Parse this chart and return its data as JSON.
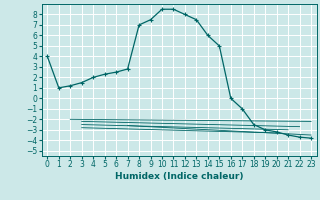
{
  "bg_color": "#cce8e8",
  "grid_color": "#ffffff",
  "line_color": "#006666",
  "xlabel": "Humidex (Indice chaleur)",
  "xlim": [
    -0.5,
    23.5
  ],
  "ylim": [
    -5.5,
    9.0
  ],
  "xticks": [
    0,
    1,
    2,
    3,
    4,
    5,
    6,
    7,
    8,
    9,
    10,
    11,
    12,
    13,
    14,
    15,
    16,
    17,
    18,
    19,
    20,
    21,
    22,
    23
  ],
  "yticks": [
    8,
    7,
    6,
    5,
    4,
    3,
    2,
    1,
    0,
    -1,
    -2,
    -3,
    -4,
    -5
  ],
  "main_curve_x": [
    0,
    1,
    2,
    3,
    4,
    5,
    6,
    7,
    8,
    9,
    10,
    11,
    12,
    13,
    14,
    15,
    16,
    17,
    18,
    19,
    20,
    21,
    22,
    23
  ],
  "main_curve_y": [
    4.0,
    1.0,
    1.2,
    1.5,
    2.0,
    2.3,
    2.5,
    2.8,
    7.0,
    7.5,
    8.5,
    8.5,
    8.0,
    7.5,
    6.0,
    5.0,
    0.0,
    -1.0,
    -2.5,
    -3.0,
    -3.2,
    -3.5,
    -3.7,
    -3.8
  ],
  "flat_lines": [
    {
      "x": [
        2,
        23
      ],
      "y": [
        -2.0,
        -2.2
      ]
    },
    {
      "x": [
        3,
        22
      ],
      "y": [
        -2.2,
        -2.7
      ]
    },
    {
      "x": [
        3,
        21
      ],
      "y": [
        -2.5,
        -3.0
      ]
    },
    {
      "x": [
        3,
        20
      ],
      "y": [
        -2.8,
        -3.3
      ]
    },
    {
      "x": [
        7,
        23
      ],
      "y": [
        -2.6,
        -3.5
      ]
    }
  ],
  "label_fontsize": 6.5,
  "tick_fontsize": 5.5
}
